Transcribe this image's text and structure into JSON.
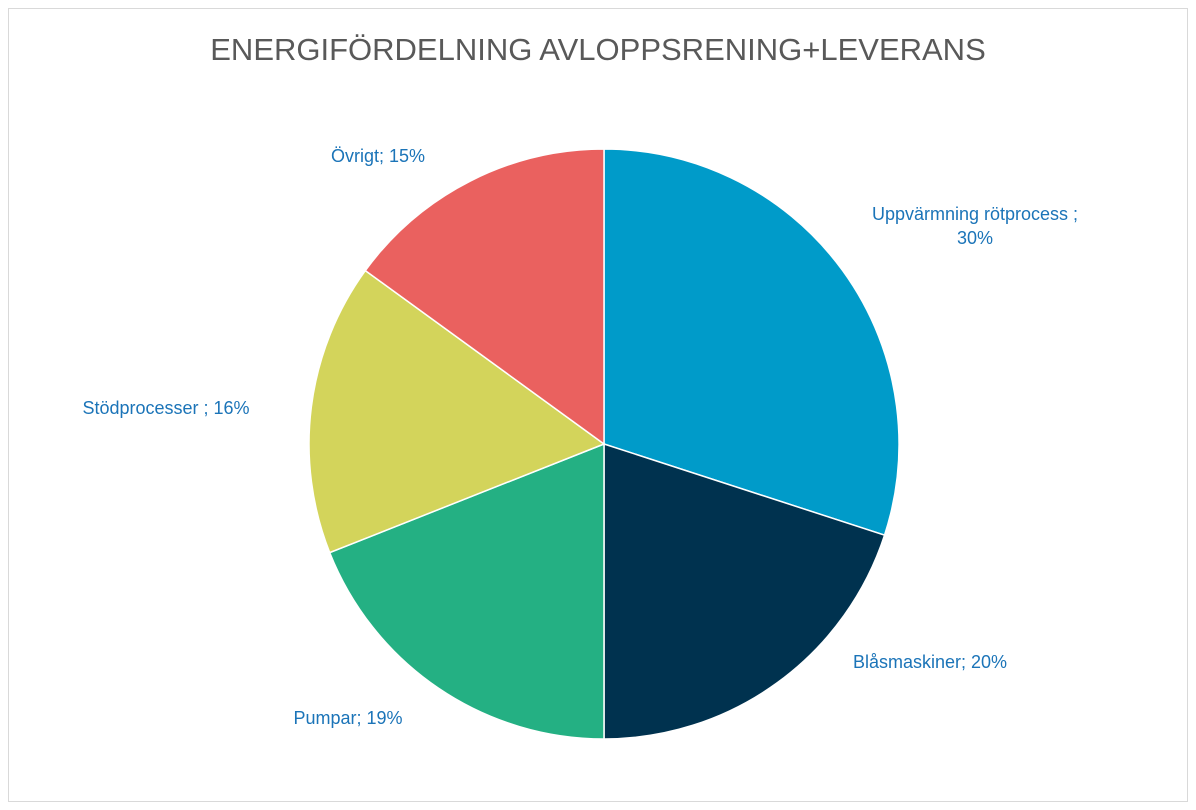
{
  "chart_data": {
    "type": "pie",
    "title": "ENERGIFÖRDELNING AVLOPPSRENING+LEVERANS",
    "categories": [
      "Uppvärmning rötprocess",
      "Blåsmaskiner",
      "Pumpar",
      "Stödprocesser",
      "Övrigt"
    ],
    "values": [
      30,
      20,
      19,
      16,
      15
    ],
    "value_labels": [
      "Uppvärmning rötprocess ; 30%",
      "Blåsmaskiner; 20%",
      "Pumpar; 19%",
      "Stödprocesser ; 16%",
      "Övrigt; 15%"
    ],
    "colors": [
      "#009bc9",
      "#00324f",
      "#24b083",
      "#d3d45b",
      "#ea615f"
    ]
  }
}
